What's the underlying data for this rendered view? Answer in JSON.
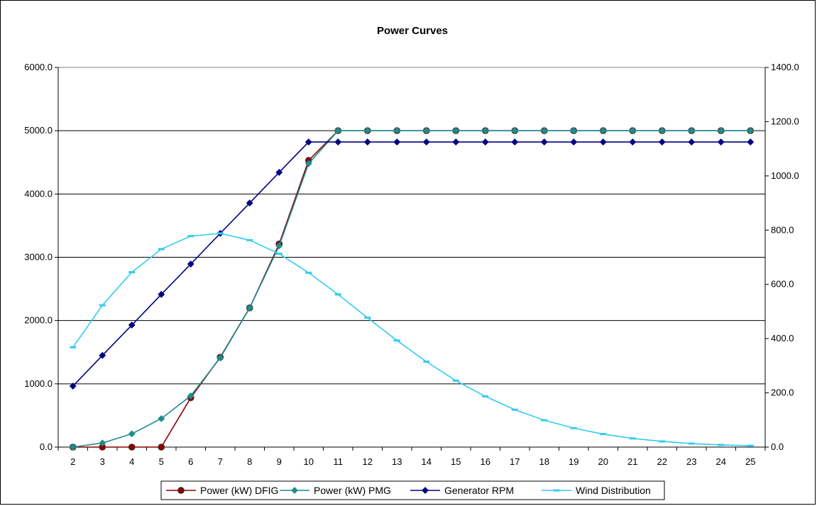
{
  "chart_data": {
    "type": "line",
    "title": "Power Curves",
    "xlabel": "",
    "ylabel": "",
    "y2label": "",
    "categories": [
      "2",
      "3",
      "4",
      "5",
      "6",
      "7",
      "8",
      "9",
      "10",
      "11",
      "12",
      "13",
      "14",
      "15",
      "16",
      "17",
      "18",
      "19",
      "20",
      "21",
      "22",
      "23",
      "24",
      "25"
    ],
    "ylim": [
      0,
      6000
    ],
    "y2lim": [
      0,
      1400
    ],
    "yticks": [
      "0.0",
      "1000.0",
      "2000.0",
      "3000.0",
      "4000.0",
      "5000.0",
      "6000.0"
    ],
    "y2ticks": [
      "0.0",
      "200.0",
      "400.0",
      "600.0",
      "800.0",
      "1000.0",
      "1200.0",
      "1400.0"
    ],
    "grid": "horizontal",
    "legend_position": "bottom",
    "series": [
      {
        "name": "Power (kW) DFIG",
        "axis": "left",
        "color": "#8B0000",
        "marker": "circle",
        "values": [
          0,
          0,
          0,
          0,
          780,
          1420,
          2200,
          3210,
          4530,
          5000,
          5000,
          5000,
          5000,
          5000,
          5000,
          5000,
          5000,
          5000,
          5000,
          5000,
          5000,
          5000,
          5000,
          5000
        ]
      },
      {
        "name": "Power (kW) PMG",
        "axis": "left",
        "color": "#1E8C8C",
        "marker": "diamond",
        "values": [
          0,
          65,
          210,
          450,
          810,
          1410,
          2200,
          3180,
          4480,
          5000,
          5000,
          5000,
          5000,
          5000,
          5000,
          5000,
          5000,
          5000,
          5000,
          5000,
          5000,
          5000,
          5000,
          5000
        ]
      },
      {
        "name": "Generator RPM",
        "axis": "right",
        "color": "#000080",
        "marker": "diamond",
        "values": [
          225,
          338,
          450,
          563,
          675,
          788,
          900,
          1013,
          1125,
          1125,
          1125,
          1125,
          1125,
          1125,
          1125,
          1125,
          1125,
          1125,
          1125,
          1125,
          1125,
          1125,
          1125,
          1125
        ]
      },
      {
        "name": "Wind Distribution",
        "axis": "right",
        "color": "#33CCEE",
        "marker": "dash",
        "values": [
          368,
          523,
          645,
          730,
          778,
          788,
          763,
          713,
          643,
          563,
          477,
          393,
          315,
          245,
          187,
          138,
          99,
          70,
          48,
          32,
          21,
          13,
          8,
          5
        ]
      }
    ]
  }
}
